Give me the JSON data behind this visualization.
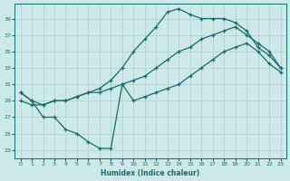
{
  "xlabel": "Humidex (Indice chaleur)",
  "bg_color": "#cde8e8",
  "line_color": "#1a6b6b",
  "grid_color": "#aecece",
  "xlim": [
    -0.5,
    23.5
  ],
  "ylim": [
    22.0,
    40.8
  ],
  "yticks": [
    23,
    25,
    27,
    29,
    31,
    33,
    35,
    37,
    39
  ],
  "xticks": [
    0,
    1,
    2,
    3,
    4,
    5,
    6,
    7,
    8,
    9,
    10,
    11,
    12,
    13,
    14,
    15,
    16,
    17,
    18,
    19,
    20,
    21,
    22,
    23
  ],
  "line1_x": [
    0,
    1,
    2,
    3,
    4,
    5,
    6,
    7,
    8,
    9,
    10,
    11,
    12,
    13,
    14,
    15,
    16,
    17,
    18,
    19,
    20,
    21,
    22,
    23
  ],
  "line1_y": [
    30,
    29,
    28.5,
    29,
    29,
    29.5,
    30,
    30.5,
    31.5,
    33,
    35,
    36.5,
    38,
    39.8,
    40.2,
    39.5,
    39,
    39,
    39,
    38.5,
    37.5,
    35.5,
    34.5,
    33
  ],
  "line2_x": [
    0,
    1,
    2,
    3,
    4,
    5,
    6,
    7,
    8,
    9,
    10,
    11,
    12,
    13,
    14,
    15,
    16,
    17,
    18,
    19,
    20,
    21,
    22,
    23
  ],
  "line2_y": [
    29,
    28.5,
    28.5,
    29,
    29,
    29.5,
    30,
    30,
    30.5,
    31,
    31.5,
    32,
    33,
    34,
    35,
    35.5,
    36.5,
    37,
    37.5,
    38,
    37,
    36,
    35,
    33
  ],
  "line3_x": [
    0,
    1,
    2,
    3,
    4,
    5,
    6,
    7,
    8,
    9,
    10,
    11,
    12,
    13,
    14,
    15,
    16,
    17,
    18,
    19,
    20,
    21,
    22,
    23
  ],
  "line3_y": [
    30,
    29,
    27,
    27,
    25.5,
    25,
    24,
    23.2,
    23.2,
    31,
    29,
    29.5,
    30,
    30.5,
    31,
    32,
    33,
    34,
    35,
    35.5,
    36,
    35,
    33.5,
    32.5
  ]
}
